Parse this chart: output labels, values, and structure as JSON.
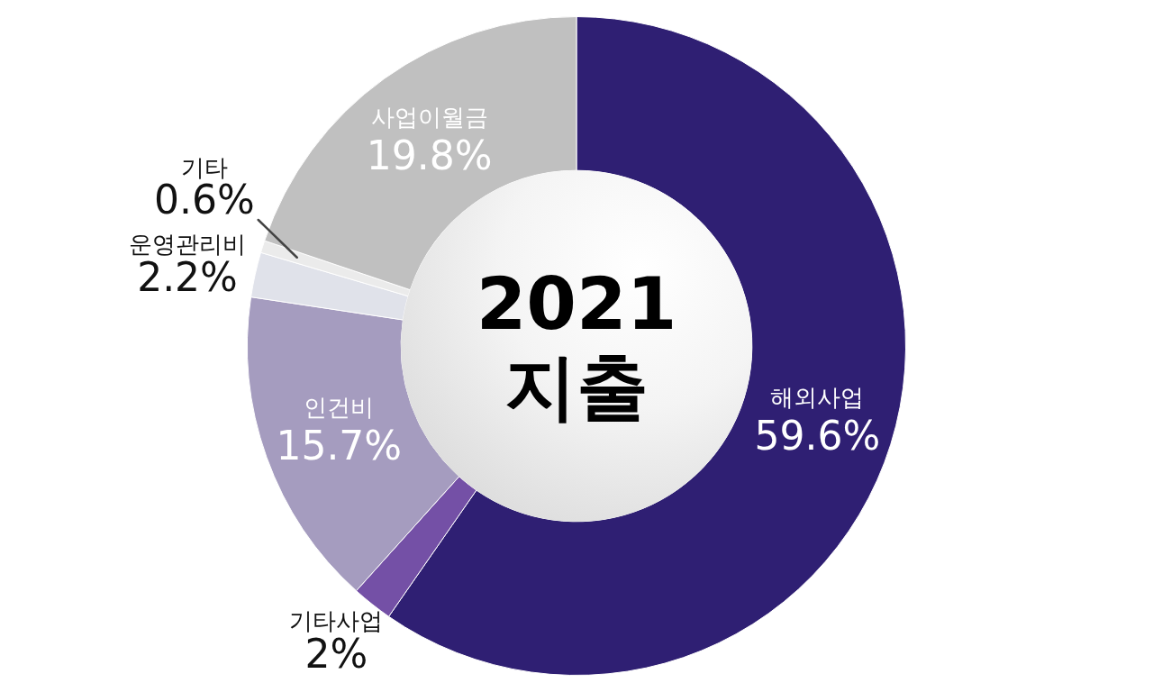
{
  "chart_data": {
    "type": "donut",
    "title": "2021 지출",
    "categories": [
      "해외사업",
      "기타사업",
      "인건비",
      "운영관리비",
      "기타",
      "사업이월금"
    ],
    "values": [
      59.6,
      2,
      15.7,
      2.2,
      0.6,
      19.8
    ],
    "colors": [
      "#2f1f73",
      "#7450a6",
      "#a59cbf",
      "#e0e2ea",
      "#ebebeb",
      "#c0c0c0"
    ],
    "value_labels": [
      "59.6%",
      "2%",
      "15.7%",
      "2.2%",
      "0.6%",
      "19.8%"
    ]
  }
}
